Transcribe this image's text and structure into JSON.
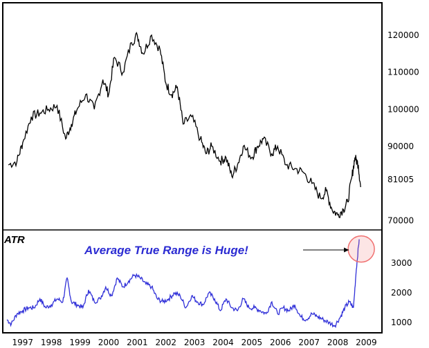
{
  "chart_data": [
    {
      "type": "line",
      "panel": "price",
      "x_ticks": [
        "1997",
        "1998",
        "1999",
        "2000",
        "2001",
        "2002",
        "2003",
        "2004",
        "2005",
        "2006",
        "2007",
        "2008",
        "2009"
      ],
      "y_ticks": [
        "70000",
        "81005",
        "90000",
        "100000",
        "110000",
        "120000"
      ],
      "ylim": [
        68000,
        128000
      ],
      "xlim": [
        1996.4,
        2009.4
      ],
      "line_color": "#000000",
      "series": [
        {
          "x": [
            1996.5,
            1996.8,
            1997.0,
            1997.3,
            1997.6,
            1997.9,
            1998.2,
            1998.5,
            1998.7,
            1998.9,
            1999.2,
            1999.5,
            1999.8,
            2000.0,
            2000.2,
            2000.5,
            2000.8,
            2001.0,
            2001.2,
            2001.5,
            2001.8,
            2002.0,
            2002.2,
            2002.4,
            2002.6,
            2002.9,
            2003.2,
            2003.4,
            2003.6,
            2003.9,
            2004.1,
            2004.3,
            2004.5,
            2004.7,
            2005.0,
            2005.2,
            2005.4,
            2005.7,
            2005.9,
            2006.2,
            2006.5,
            2006.8,
            2007.1,
            2007.4,
            2007.6,
            2007.8,
            2008.0,
            2008.2,
            2008.35,
            2008.5,
            2008.6,
            2008.72,
            2008.8
          ],
          "values": [
            85000,
            86000,
            91000,
            98000,
            99000,
            100000,
            101000,
            92000,
            96000,
            100000,
            104000,
            100000,
            108000,
            104000,
            114000,
            110000,
            118000,
            120000,
            115000,
            120000,
            116000,
            107000,
            104000,
            106000,
            96000,
            98000,
            92000,
            88000,
            90000,
            86000,
            87000,
            82000,
            85000,
            90000,
            87000,
            90000,
            92000,
            88000,
            90000,
            85000,
            84000,
            83000,
            80000,
            76000,
            78000,
            73000,
            71500,
            73000,
            75000,
            82000,
            87000,
            85000,
            79000
          ]
        }
      ]
    },
    {
      "type": "line",
      "panel": "atr",
      "indicator_label": "ATR",
      "annotation": "Average True Range is Huge!",
      "x_ticks": [
        "1997",
        "1998",
        "1999",
        "2000",
        "2001",
        "2002",
        "2003",
        "2004",
        "2005",
        "2006",
        "2007",
        "2008",
        "2009"
      ],
      "y_ticks": [
        "1000",
        "2000",
        "3000"
      ],
      "ylim": [
        750,
        4000
      ],
      "xlim": [
        1996.4,
        2009.4
      ],
      "line_color": "#2f2fd8",
      "annotation_color": "#2b2bd2",
      "highlight_color": "#f07070",
      "series": [
        {
          "x": [
            1996.45,
            1996.6,
            1996.8,
            1997.0,
            1997.2,
            1997.4,
            1997.6,
            1997.8,
            1998.0,
            1998.2,
            1998.4,
            1998.55,
            1998.7,
            1998.9,
            1999.1,
            1999.3,
            1999.5,
            1999.7,
            1999.9,
            2000.1,
            2000.3,
            2000.5,
            2000.7,
            2000.9,
            2001.1,
            2001.3,
            2001.5,
            2001.7,
            2001.9,
            2002.1,
            2002.3,
            2002.5,
            2002.7,
            2002.9,
            2003.1,
            2003.3,
            2003.5,
            2003.7,
            2003.9,
            2004.1,
            2004.3,
            2004.5,
            2004.7,
            2004.9,
            2005.1,
            2005.3,
            2005.5,
            2005.7,
            2005.9,
            2006.1,
            2006.3,
            2006.5,
            2006.7,
            2006.9,
            2007.1,
            2007.3,
            2007.5,
            2007.7,
            2007.9,
            2008.1,
            2008.25,
            2008.4,
            2008.55,
            2008.65,
            2008.75
          ],
          "values": [
            1100,
            950,
            1300,
            1400,
            1500,
            1500,
            1800,
            1500,
            1600,
            1800,
            1700,
            2500,
            1700,
            1600,
            1500,
            2100,
            1700,
            1800,
            2200,
            1900,
            2500,
            2200,
            2400,
            2600,
            2500,
            2300,
            2200,
            1800,
            1700,
            1800,
            2000,
            1900,
            1500,
            1900,
            1700,
            1600,
            2000,
            1800,
            1400,
            1800,
            1500,
            1400,
            1800,
            1500,
            1500,
            1400,
            1300,
            1700,
            1300,
            1500,
            1400,
            1600,
            1200,
            1100,
            1300,
            1200,
            1100,
            1000,
            900,
            1200,
            1500,
            1700,
            1500,
            2800,
            3800
          ]
        }
      ]
    }
  ]
}
